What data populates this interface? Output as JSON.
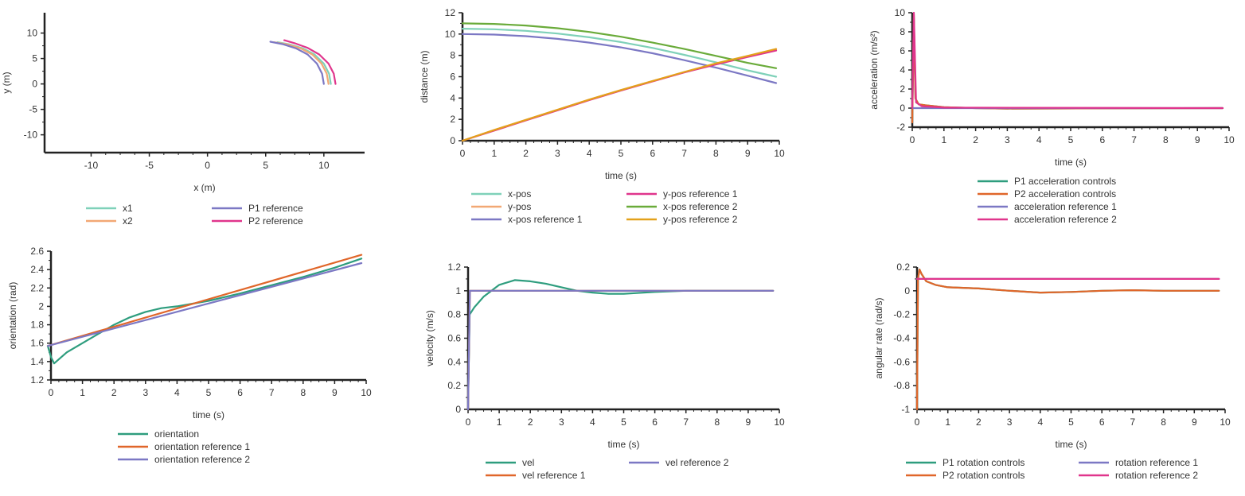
{
  "colors": {
    "teal_light": "#7fd1b9",
    "teal": "#2e9d7e",
    "orange_light": "#f2a874",
    "orange": "#e0662a",
    "purple": "#7c78c4",
    "magenta": "#e0358c",
    "green": "#6aab3a",
    "gold": "#e3a11b",
    "axis": "#222222"
  },
  "chart_data": [
    {
      "type": "line",
      "xlabel": "x (m)",
      "ylabel": "y (m)",
      "xlim": [
        -14,
        13.5
      ],
      "ylim": [
        -13.5,
        14
      ],
      "xticks": [
        -10,
        -5,
        0,
        5,
        10
      ],
      "xtick_labels": [
        "-10",
        "-5",
        "0",
        "5",
        "10"
      ],
      "yticks": [
        -10,
        -5,
        0,
        5,
        10
      ],
      "ytick_labels": [
        "-10",
        "-5",
        "0",
        "5",
        "10"
      ],
      "legend": "bottom-center",
      "legend_cols": 2,
      "series": [
        {
          "name": "x1",
          "color": "#7fd1b9",
          "x": [
            10.6,
            10.45,
            10.0,
            9.2,
            8.2,
            7.0,
            6.0
          ],
          "y": [
            0,
            2.0,
            4.0,
            5.8,
            7.0,
            7.8,
            8.2
          ]
        },
        {
          "name": "x2",
          "color": "#f2a874",
          "x": [
            10.4,
            10.25,
            9.8,
            9.0,
            8.0,
            6.8,
            5.7
          ],
          "y": [
            0,
            2.0,
            4.0,
            5.8,
            7.0,
            7.8,
            8.2
          ]
        },
        {
          "name": "P1 reference",
          "color": "#7c78c4",
          "x": [
            10.0,
            9.85,
            9.4,
            8.6,
            7.6,
            6.5,
            5.4
          ],
          "y": [
            0,
            2.0,
            4.0,
            5.8,
            7.0,
            7.8,
            8.3
          ]
        },
        {
          "name": "P2 reference",
          "color": "#e0358c",
          "x": [
            11.0,
            10.85,
            10.4,
            9.6,
            8.6,
            7.5,
            6.6
          ],
          "y": [
            0,
            2.0,
            4.0,
            5.8,
            7.1,
            8.0,
            8.6
          ]
        }
      ]
    },
    {
      "type": "line",
      "xlabel": "time (s)",
      "ylabel": "distance (m)",
      "xlim": [
        0,
        10
      ],
      "ylim": [
        0,
        12
      ],
      "xticks": [
        0,
        1,
        2,
        3,
        4,
        5,
        6,
        7,
        8,
        9,
        10
      ],
      "xtick_labels": [
        "0",
        "1",
        "2",
        "3",
        "4",
        "5",
        "6",
        "7",
        "8",
        "9",
        "10"
      ],
      "yticks": [
        0,
        2,
        4,
        6,
        8,
        10,
        12
      ],
      "ytick_labels": [
        "0",
        "2",
        "4",
        "6",
        "8",
        "10",
        "12"
      ],
      "legend": "bottom-center",
      "legend_cols": 2,
      "series": [
        {
          "name": "x-pos",
          "color": "#7fd1b9",
          "x": [
            0,
            1,
            2,
            3,
            4,
            5,
            6,
            7,
            8,
            9,
            9.9
          ],
          "y": [
            10.5,
            10.45,
            10.3,
            10.05,
            9.7,
            9.25,
            8.7,
            8.05,
            7.35,
            6.6,
            6.0
          ]
        },
        {
          "name": "y-pos",
          "color": "#f2a874",
          "x": [
            0,
            1,
            2,
            3,
            4,
            5,
            6,
            7,
            8,
            9,
            9.9
          ],
          "y": [
            0,
            1.0,
            1.95,
            2.9,
            3.85,
            4.75,
            5.6,
            6.4,
            7.2,
            7.9,
            8.5
          ]
        },
        {
          "name": "x-pos reference 1",
          "color": "#7c78c4",
          "x": [
            0,
            1,
            2,
            3,
            4,
            5,
            6,
            7,
            8,
            9,
            9.9
          ],
          "y": [
            10.0,
            9.95,
            9.8,
            9.55,
            9.2,
            8.75,
            8.2,
            7.55,
            6.85,
            6.1,
            5.4
          ]
        },
        {
          "name": "y-pos reference 1",
          "color": "#e0358c",
          "x": [
            0,
            1,
            2,
            3,
            4,
            5,
            6,
            7,
            8,
            9,
            9.9
          ],
          "y": [
            0,
            0.95,
            1.9,
            2.85,
            3.8,
            4.7,
            5.55,
            6.4,
            7.15,
            7.85,
            8.45
          ]
        },
        {
          "name": "x-pos reference 2",
          "color": "#6aab3a",
          "x": [
            0,
            1,
            2,
            3,
            4,
            5,
            6,
            7,
            8,
            9,
            9.9
          ],
          "y": [
            11.0,
            10.95,
            10.8,
            10.55,
            10.2,
            9.75,
            9.2,
            8.6,
            7.95,
            7.3,
            6.8
          ]
        },
        {
          "name": "y-pos reference 2",
          "color": "#e3a11b",
          "x": [
            0,
            1,
            2,
            3,
            4,
            5,
            6,
            7,
            8,
            9,
            9.9
          ],
          "y": [
            0,
            1.0,
            1.95,
            2.9,
            3.85,
            4.75,
            5.6,
            6.45,
            7.25,
            7.95,
            8.6
          ]
        }
      ]
    },
    {
      "type": "line",
      "xlabel": "time (s)",
      "ylabel": "acceleration (m/s²)",
      "xlim": [
        0,
        10
      ],
      "ylim": [
        -2,
        10
      ],
      "xticks": [
        0,
        1,
        2,
        3,
        4,
        5,
        6,
        7,
        8,
        9,
        10
      ],
      "xtick_labels": [
        "0",
        "1",
        "2",
        "3",
        "4",
        "5",
        "6",
        "7",
        "8",
        "9",
        "10"
      ],
      "yticks": [
        -2,
        0,
        2,
        4,
        6,
        8,
        10
      ],
      "ytick_labels": [
        "-2",
        "0",
        "2",
        "4",
        "6",
        "8",
        "10"
      ],
      "legend": "bottom-center",
      "legend_cols": 1,
      "series": [
        {
          "name": "P1 acceleration controls",
          "color": "#2e9d7e",
          "x": [
            0,
            0.05,
            0.1,
            0.2,
            0.4,
            1,
            2,
            3,
            9.8
          ],
          "y": [
            -1.5,
            9.5,
            1.0,
            0.4,
            0.3,
            0.1,
            0.0,
            -0.05,
            0
          ]
        },
        {
          "name": "P2 acceleration controls",
          "color": "#e0662a",
          "x": [
            0,
            0.05,
            0.1,
            0.2,
            0.4,
            1,
            2,
            3,
            9.8
          ],
          "y": [
            -1.5,
            9.8,
            1.0,
            0.4,
            0.3,
            0.1,
            0.0,
            -0.05,
            0
          ]
        },
        {
          "name": "acceleration reference 1",
          "color": "#7c78c4",
          "x": [
            0,
            9.8
          ],
          "y": [
            0,
            0
          ]
        },
        {
          "name": "acceleration reference 2",
          "color": "#e0358c",
          "x": [
            0,
            0.05,
            0.12,
            0.3,
            1,
            9.8
          ],
          "y": [
            0,
            10,
            0.6,
            0.2,
            0.05,
            0
          ]
        }
      ]
    },
    {
      "type": "line",
      "xlabel": "time (s)",
      "ylabel": "orientation (rad)",
      "xlim": [
        0,
        10
      ],
      "ylim": [
        1.2,
        2.6
      ],
      "xticks": [
        0,
        1,
        2,
        3,
        4,
        5,
        6,
        7,
        8,
        9,
        10
      ],
      "xtick_labels": [
        "0",
        "1",
        "2",
        "3",
        "4",
        "5",
        "6",
        "7",
        "8",
        "9",
        "10"
      ],
      "yticks": [
        1.2,
        1.4,
        1.6,
        1.8,
        2.0,
        2.2,
        2.4,
        2.6
      ],
      "ytick_labels": [
        "1.2",
        "1.4",
        "1.6",
        "1.8",
        "2",
        "2.2",
        "2.4",
        "2.6"
      ],
      "legend": "bottom-center",
      "legend_cols": 1,
      "series": [
        {
          "name": "orientation",
          "color": "#2e9d7e",
          "x": [
            -0.1,
            0,
            0.1,
            0.5,
            1,
            1.5,
            2,
            2.5,
            3,
            3.5,
            4,
            4.5,
            5,
            6,
            7,
            8,
            9,
            9.85
          ],
          "y": [
            1.57,
            1.45,
            1.38,
            1.5,
            1.6,
            1.7,
            1.8,
            1.88,
            1.94,
            1.98,
            2.0,
            2.03,
            2.06,
            2.14,
            2.23,
            2.32,
            2.42,
            2.52
          ]
        },
        {
          "name": "orientation reference 1",
          "color": "#e0662a",
          "x": [
            -0.1,
            9.85
          ],
          "y": [
            1.57,
            2.56
          ]
        },
        {
          "name": "orientation reference 2",
          "color": "#7c78c4",
          "x": [
            -0.1,
            9.85
          ],
          "y": [
            1.57,
            2.47
          ]
        }
      ]
    },
    {
      "type": "line",
      "xlabel": "time (s)",
      "ylabel": "velocity (m/s)",
      "xlim": [
        0,
        10
      ],
      "ylim": [
        0,
        1.2
      ],
      "xticks": [
        0,
        1,
        2,
        3,
        4,
        5,
        6,
        7,
        8,
        9,
        10
      ],
      "xtick_labels": [
        "0",
        "1",
        "2",
        "3",
        "4",
        "5",
        "6",
        "7",
        "8",
        "9",
        "10"
      ],
      "yticks": [
        0,
        0.2,
        0.4,
        0.6,
        0.8,
        1.0,
        1.2
      ],
      "ytick_labels": [
        "0",
        "0.2",
        "0.4",
        "0.6",
        "0.8",
        "1",
        "1.2"
      ],
      "legend": "bottom-center",
      "legend_cols": 2,
      "series": [
        {
          "name": "vel",
          "color": "#2e9d7e",
          "x": [
            0,
            0.05,
            0.2,
            0.5,
            1,
            1.5,
            2,
            2.5,
            3,
            3.5,
            4,
            4.5,
            5,
            6,
            7,
            8,
            9.8
          ],
          "y": [
            0.05,
            0.8,
            0.86,
            0.95,
            1.05,
            1.09,
            1.08,
            1.06,
            1.03,
            1.0,
            0.985,
            0.975,
            0.975,
            0.99,
            1.0,
            1.0,
            1.0
          ]
        },
        {
          "name": "vel reference 1",
          "color": "#e0662a",
          "x": [
            0,
            0.06,
            9.8
          ],
          "y": [
            0,
            1.0,
            1.0
          ]
        },
        {
          "name": "vel reference 2",
          "color": "#7c78c4",
          "x": [
            0,
            0.06,
            9.8
          ],
          "y": [
            0,
            1.0,
            1.0
          ]
        }
      ]
    },
    {
      "type": "line",
      "xlabel": "time (s)",
      "ylabel": "angular rate (rad/s)",
      "xlim": [
        0,
        10
      ],
      "ylim": [
        -1,
        0.2
      ],
      "xticks": [
        0,
        1,
        2,
        3,
        4,
        5,
        6,
        7,
        8,
        9,
        10
      ],
      "xtick_labels": [
        "0",
        "1",
        "2",
        "3",
        "4",
        "5",
        "6",
        "7",
        "8",
        "9",
        "10"
      ],
      "yticks": [
        -1,
        -0.8,
        -0.6,
        -0.4,
        -0.2,
        0,
        0.2
      ],
      "ytick_labels": [
        "-1",
        "-0.8",
        "-0.6",
        "-0.4",
        "-0.2",
        "0",
        "0.2"
      ],
      "legend": "bottom-center",
      "legend_cols": 2,
      "series": [
        {
          "name": "P1 rotation controls",
          "color": "#2e9d7e",
          "x": [
            0,
            0.03,
            0.08,
            0.15,
            0.3,
            0.6,
            1,
            2,
            3,
            4,
            5,
            6,
            7,
            8,
            9,
            9.8
          ],
          "y": [
            -1.0,
            0.1,
            0.18,
            0.14,
            0.08,
            0.05,
            0.03,
            0.02,
            0.0,
            -0.015,
            -0.01,
            0.0,
            0.005,
            0.0,
            0.0,
            0.0
          ]
        },
        {
          "name": "P2 rotation controls",
          "color": "#e0662a",
          "x": [
            0,
            0.03,
            0.08,
            0.15,
            0.3,
            0.6,
            1,
            2,
            3,
            4,
            5,
            6,
            7,
            8,
            9,
            9.8
          ],
          "y": [
            -1.0,
            0.1,
            0.18,
            0.14,
            0.08,
            0.05,
            0.03,
            0.02,
            0.0,
            -0.015,
            -0.01,
            0.0,
            0.005,
            0.0,
            0.0,
            0.0
          ]
        },
        {
          "name": "rotation reference 1",
          "color": "#7c78c4",
          "x": [
            0,
            9.8
          ],
          "y": [
            0.1,
            0.1
          ]
        },
        {
          "name": "rotation reference 2",
          "color": "#e0358c",
          "x": [
            0,
            9.8
          ],
          "y": [
            0.1,
            0.1
          ]
        }
      ]
    }
  ]
}
